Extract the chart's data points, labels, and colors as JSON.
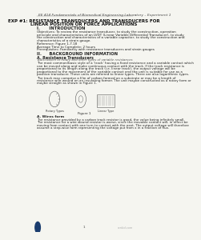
{
  "page_bg": "#f5f5f0",
  "header_line": "EE 414 Fundamentals of Biomedical Engineering Laboratory – Experiment 1",
  "title_line1": "EXP #1: RESISTANCE TRANSDUCERS AND TRANSDUCERS FOR",
  "title_line2": "LINEAR POSITION OR FORCE APPLICATIONS",
  "section1": "I.      INTRODUCTION",
  "intro_text": "Objectives: To review the resistance transducer, to study the construction, operation\nprinciple and characteristics of an LVDT (Linear Variable Differential Transducer), to study\nthe construction and characteristics of a variable capacitor, to study the construction and\ncharacteristics of a strain gauge.",
  "reference": "Reference: Figure 1-7.18",
  "average_time": "Average Time to Complete: 2 hours",
  "prereq": "Prerequisites: Familiarity with resistance transducers and strain gauges",
  "section2": "II.     BACKGROUND INFORMATION",
  "subsection_a": "A. Resistance Transducers",
  "italic_line": "A discussion of rotary and other types of variable resistances",
  "body1": "The most common/basic style of a ‘track’ having a fixed resistance and a variable contact which\ncan be moved along and make continuous contact with the track. If the track resistance is\nproportional to its length along the track (i.e. linear track), the output voltage will be\nproportional to the movement of the variable contact and the unit is suitable for use as a\nposition transducer. These units are referred to linear types. There are also logarithmic types.",
  "body2": "The track may comprise a film of carbon formed on a substrate or may be a length of\nresistance wire wound on an insulating former. The unit maybe constructed as a rotary form or\nmaybe straight as shown in Figure 1.",
  "figure_label": "Figure 1",
  "subsection_b": "A. Wires form",
  "body3": "The resistance provided by a carbon track resistor is good, the value being infinitely small.\nThe resistance for a wire wound resistor is worse, since the movable contact will, in effect be\nmoving from contact with one turn to contact with the next. The output voltage will therefore\nassume a step-wise form representing the voltage put from x in a fraction of flux.",
  "page_number": "1",
  "watermark": "scribd.com",
  "text_color": "#222222",
  "header_color": "#333333",
  "title_color": "#111111",
  "line_color": "#888888"
}
